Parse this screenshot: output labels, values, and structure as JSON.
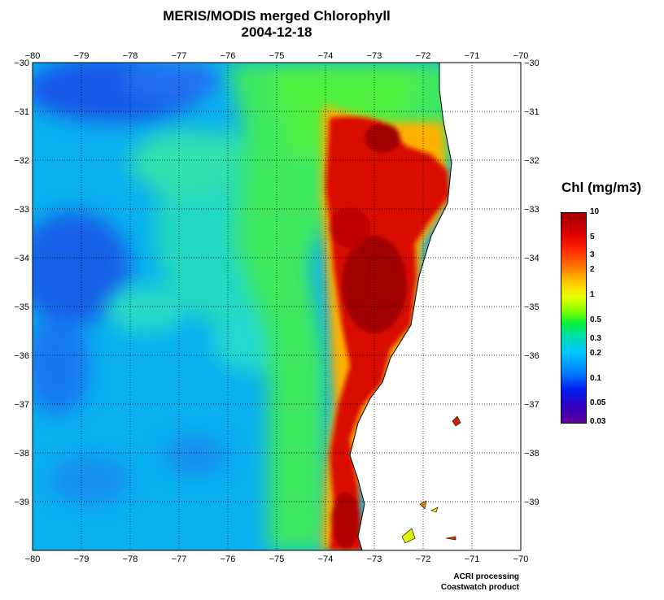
{
  "title": "MERIS/MODIS merged Chlorophyll",
  "date": "2004-12-18",
  "map": {
    "lon_range": [
      -80,
      -70
    ],
    "lat_range": [
      -40,
      -30
    ],
    "lon_ticks": [
      "−80",
      "−79",
      "−78",
      "−77",
      "−76",
      "−75",
      "−74",
      "−73",
      "−72",
      "−71",
      "−70"
    ],
    "lat_ticks": [
      "−30",
      "−31",
      "−32",
      "−33",
      "−34",
      "−35",
      "−36",
      "−37",
      "−38",
      "−39"
    ],
    "grid": "dotted",
    "land_color": "#ffffff",
    "coastline": "Chile (central)"
  },
  "legend": {
    "title": "Chl (mg/m3)",
    "labels": [
      "10",
      "5",
      "3",
      "2",
      "1",
      "0.5",
      "0.3",
      "0.2",
      "0.1",
      "0.05",
      "0.03"
    ],
    "colors": [
      "#a00000",
      "#ff2000",
      "#ff7000",
      "#ffc800",
      "#e8ff00",
      "#00f040",
      "#00e0a0",
      "#00c8ff",
      "#0020f0",
      "#3000c0",
      "#6000a0"
    ]
  },
  "credits": {
    "line1": "ACRI processing",
    "line2": "Coastwatch product"
  }
}
